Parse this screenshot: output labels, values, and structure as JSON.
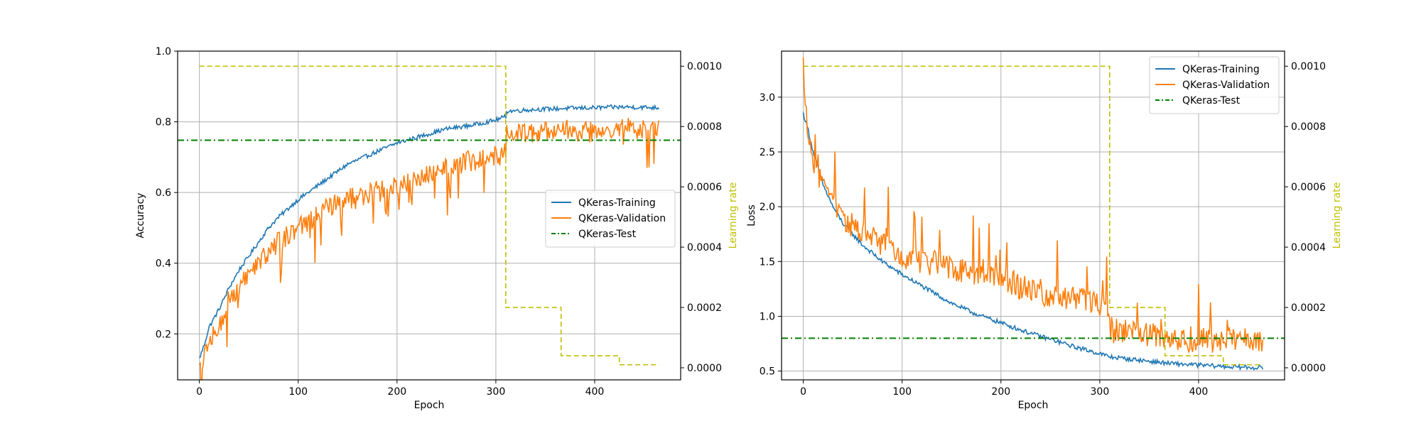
{
  "colors": {
    "training": "#1f77b4",
    "validation": "#ff7f0e",
    "test": "#008000",
    "learning_rate": "#bfbf00",
    "grid": "#b0b0b0"
  },
  "chart_data": [
    {
      "type": "line",
      "title": "",
      "xlabel": "Epoch",
      "ylabel": "Accuracy",
      "y2label": "Learning rate",
      "xlim": [
        -22,
        487
      ],
      "ylim": [
        0.07,
        1.0
      ],
      "y2lim": [
        -4e-05,
        0.00105
      ],
      "xticks": [
        "0",
        "100",
        "200",
        "300",
        "400"
      ],
      "yticks": [
        "0.2",
        "0.4",
        "0.6",
        "0.8",
        "1.0"
      ],
      "y2ticks": [
        "0.0000",
        "0.0002",
        "0.0004",
        "0.0006",
        "0.0008",
        "0.0010"
      ],
      "grid": true,
      "legend_position": "center-right",
      "legend": [
        "QKeras-Training",
        "QKeras-Validation",
        "QKeras-Test"
      ],
      "series": [
        {
          "name": "QKeras-Training",
          "style": "solid",
          "noise": 0.006,
          "points": [
            [
              0,
              0.13
            ],
            [
              5,
              0.17
            ],
            [
              10,
              0.22
            ],
            [
              20,
              0.27
            ],
            [
              30,
              0.33
            ],
            [
              40,
              0.38
            ],
            [
              50,
              0.42
            ],
            [
              60,
              0.46
            ],
            [
              70,
              0.5
            ],
            [
              80,
              0.53
            ],
            [
              100,
              0.58
            ],
            [
              120,
              0.62
            ],
            [
              150,
              0.68
            ],
            [
              175,
              0.71
            ],
            [
              200,
              0.74
            ],
            [
              225,
              0.76
            ],
            [
              250,
              0.78
            ],
            [
              275,
              0.79
            ],
            [
              300,
              0.805
            ],
            [
              310,
              0.815
            ],
            [
              311,
              0.83
            ],
            [
              340,
              0.835
            ],
            [
              370,
              0.838
            ],
            [
              400,
              0.84
            ],
            [
              430,
              0.842
            ],
            [
              465,
              0.84
            ]
          ]
        },
        {
          "name": "QKeras-Validation",
          "style": "solid",
          "noise": 0.03,
          "spikes": true,
          "points": [
            [
              0,
              0.1
            ],
            [
              10,
              0.18
            ],
            [
              20,
              0.22
            ],
            [
              30,
              0.3
            ],
            [
              40,
              0.33
            ],
            [
              50,
              0.37
            ],
            [
              60,
              0.4
            ],
            [
              80,
              0.46
            ],
            [
              100,
              0.5
            ],
            [
              125,
              0.55
            ],
            [
              150,
              0.58
            ],
            [
              175,
              0.6
            ],
            [
              200,
              0.62
            ],
            [
              225,
              0.65
            ],
            [
              250,
              0.67
            ],
            [
              275,
              0.69
            ],
            [
              300,
              0.7
            ],
            [
              310,
              0.71
            ],
            [
              311,
              0.77
            ],
            [
              340,
              0.77
            ],
            [
              370,
              0.78
            ],
            [
              400,
              0.78
            ],
            [
              430,
              0.785
            ],
            [
              465,
              0.78
            ]
          ]
        },
        {
          "name": "QKeras-Test",
          "style": "dashdot",
          "constant": 0.748
        },
        {
          "name": "Learning rate",
          "style": "dashed",
          "axis": "y2",
          "steps": [
            [
              0,
              0.001
            ],
            [
              310,
              0.0002
            ],
            [
              366,
              4e-05
            ],
            [
              425,
              1e-05
            ],
            [
              465,
              1e-05
            ]
          ]
        }
      ]
    },
    {
      "type": "line",
      "title": "",
      "xlabel": "Epoch",
      "ylabel": "Loss",
      "y2label": "Learning rate",
      "xlim": [
        -22,
        487
      ],
      "ylim": [
        0.42,
        3.42
      ],
      "y2lim": [
        -4e-05,
        0.00105
      ],
      "xticks": [
        "0",
        "100",
        "200",
        "300",
        "400"
      ],
      "yticks": [
        "0.5",
        "1.0",
        "1.5",
        "2.0",
        "2.5",
        "3.0"
      ],
      "y2ticks": [
        "0.0000",
        "0.0002",
        "0.0004",
        "0.0006",
        "0.0008",
        "0.0010"
      ],
      "grid": true,
      "legend_position": "upper-right",
      "legend": [
        "QKeras-Training",
        "QKeras-Validation",
        "QKeras-Test"
      ],
      "series": [
        {
          "name": "QKeras-Training",
          "style": "solid",
          "noise": 0.02,
          "points": [
            [
              0,
              2.85
            ],
            [
              5,
              2.7
            ],
            [
              10,
              2.5
            ],
            [
              20,
              2.2
            ],
            [
              30,
              2.0
            ],
            [
              40,
              1.85
            ],
            [
              50,
              1.75
            ],
            [
              60,
              1.65
            ],
            [
              80,
              1.5
            ],
            [
              100,
              1.38
            ],
            [
              125,
              1.25
            ],
            [
              150,
              1.12
            ],
            [
              175,
              1.02
            ],
            [
              200,
              0.94
            ],
            [
              225,
              0.86
            ],
            [
              250,
              0.79
            ],
            [
              275,
              0.72
            ],
            [
              300,
              0.66
            ],
            [
              310,
              0.63
            ],
            [
              340,
              0.6
            ],
            [
              370,
              0.57
            ],
            [
              400,
              0.555
            ],
            [
              430,
              0.54
            ],
            [
              465,
              0.53
            ]
          ]
        },
        {
          "name": "QKeras-Validation",
          "style": "solid",
          "noise": 0.12,
          "spikes": true,
          "points": [
            [
              0,
              3.3
            ],
            [
              5,
              2.6
            ],
            [
              10,
              2.4
            ],
            [
              20,
              2.2
            ],
            [
              30,
              2.05
            ],
            [
              40,
              1.9
            ],
            [
              60,
              1.75
            ],
            [
              80,
              1.65
            ],
            [
              100,
              1.55
            ],
            [
              125,
              1.5
            ],
            [
              150,
              1.45
            ],
            [
              175,
              1.4
            ],
            [
              200,
              1.35
            ],
            [
              225,
              1.25
            ],
            [
              250,
              1.2
            ],
            [
              275,
              1.15
            ],
            [
              300,
              1.1
            ],
            [
              310,
              1.05
            ],
            [
              311,
              0.88
            ],
            [
              340,
              0.83
            ],
            [
              370,
              0.8
            ],
            [
              400,
              0.79
            ],
            [
              430,
              0.78
            ],
            [
              465,
              0.76
            ]
          ]
        },
        {
          "name": "QKeras-Test",
          "style": "dashdot",
          "constant": 0.8
        },
        {
          "name": "Learning rate",
          "style": "dashed",
          "axis": "y2",
          "steps": [
            [
              0,
              0.001
            ],
            [
              310,
              0.0002
            ],
            [
              366,
              4e-05
            ],
            [
              425,
              1e-05
            ],
            [
              465,
              1e-05
            ]
          ]
        }
      ]
    }
  ]
}
